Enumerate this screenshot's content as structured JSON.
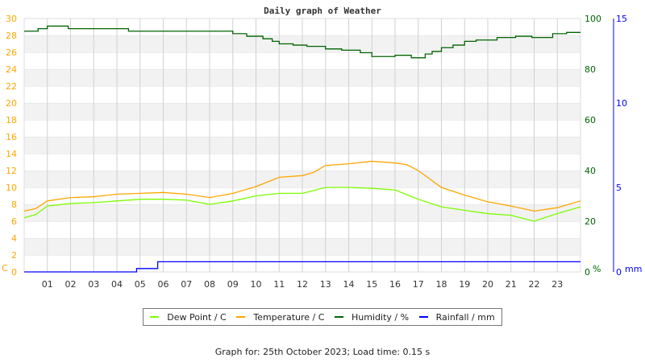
{
  "chart_data": {
    "type": "line",
    "title": "Daily graph of Weather",
    "x_ticks": [
      "01",
      "02",
      "03",
      "04",
      "05",
      "06",
      "07",
      "08",
      "09",
      "10",
      "11",
      "12",
      "13",
      "14",
      "15",
      "16",
      "17",
      "18",
      "19",
      "20",
      "21",
      "22",
      "23"
    ],
    "xlim": [
      0,
      24
    ],
    "grid": true,
    "axes": {
      "left": {
        "unit": "C",
        "ylim": [
          0,
          30
        ],
        "ticks": [
          "0",
          "2",
          "4",
          "6",
          "8",
          "10",
          "12",
          "14",
          "16",
          "18",
          "20",
          "22",
          "24",
          "26",
          "28",
          "30"
        ],
        "color": "#ffa500"
      },
      "right": {
        "unit": "%",
        "ylim": [
          0,
          100
        ],
        "ticks": [
          "0",
          "20",
          "40",
          "60",
          "80",
          "100"
        ],
        "color": "#006400"
      },
      "rain": {
        "unit": "mm",
        "ylim": [
          0,
          15
        ],
        "ticks": [
          "0",
          "5",
          "10",
          "15"
        ],
        "color": "#0000ff"
      }
    },
    "legend_position": "bottom",
    "series": [
      {
        "name": "Dew Point / C",
        "color": "#7cfc00",
        "axis": "left",
        "x": [
          0,
          0.5,
          1,
          2,
          3,
          4,
          5,
          6,
          7,
          8,
          9,
          10,
          11,
          12,
          13,
          14,
          15,
          16,
          17,
          18,
          19,
          20,
          21,
          22,
          23,
          24
        ],
        "y": [
          6.4,
          6.8,
          7.8,
          8.1,
          8.2,
          8.4,
          8.6,
          8.6,
          8.5,
          8.0,
          8.4,
          9.0,
          9.3,
          9.3,
          10.0,
          10.0,
          9.9,
          9.7,
          8.6,
          7.7,
          7.3,
          6.9,
          6.7,
          6.0,
          6.9,
          7.7
        ]
      },
      {
        "name": "Temperature / C",
        "color": "#ffa500",
        "axis": "left",
        "x": [
          0,
          0.5,
          1,
          2,
          3,
          4,
          5,
          6,
          7,
          8,
          9,
          10,
          11,
          12,
          12.5,
          13,
          14,
          15,
          16,
          16.5,
          17,
          18,
          19,
          20,
          21,
          22,
          23,
          24
        ],
        "y": [
          7.2,
          7.5,
          8.4,
          8.8,
          8.9,
          9.2,
          9.3,
          9.4,
          9.2,
          8.8,
          9.3,
          10.1,
          11.2,
          11.4,
          11.8,
          12.6,
          12.8,
          13.1,
          12.9,
          12.7,
          12.0,
          10.0,
          9.1,
          8.3,
          7.8,
          7.2,
          7.6,
          8.4
        ]
      },
      {
        "name": "Humidity / %",
        "color": "#006400",
        "axis": "right",
        "step": true,
        "x": [
          0,
          0.6,
          1.0,
          1.9,
          4.5,
          9.0,
          9.6,
          10.3,
          10.7,
          11.0,
          11.6,
          12.2,
          13.0,
          13.7,
          14.5,
          15.0,
          16.0,
          16.7,
          17.3,
          17.6,
          18.0,
          18.5,
          19.0,
          19.5,
          20.4,
          21.2,
          21.9,
          22.8,
          23.4,
          24
        ],
        "y": [
          95,
          96,
          97,
          96,
          95,
          94,
          93,
          92,
          91,
          90,
          89.5,
          89,
          88,
          87.5,
          86.5,
          85,
          85.5,
          84.5,
          86,
          87,
          88.5,
          89.5,
          91,
          91.5,
          92.5,
          93,
          92.5,
          94,
          94.5,
          94.5
        ]
      },
      {
        "name": "Rainfall / mm",
        "color": "#0000ff",
        "axis": "rain",
        "step": true,
        "x": [
          0,
          4.85,
          5.76,
          24
        ],
        "y": [
          0,
          0.2,
          0.6,
          0.6
        ]
      }
    ]
  },
  "footer": "Graph for: 25th October 2023; Load time: 0.15 s"
}
